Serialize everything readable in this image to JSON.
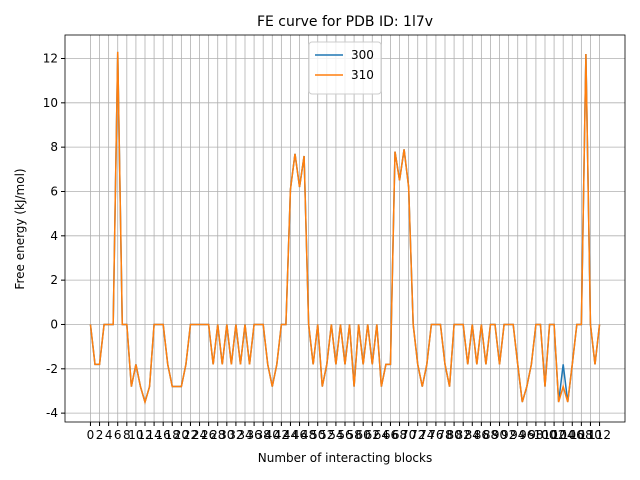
{
  "chart_data": {
    "type": "line",
    "title": "FE curve for PDB ID: 1l7v",
    "x_label": "Number of interacting blocks",
    "y_label": "Free energy (kJ/mol)",
    "x": [
      0,
      1,
      2,
      3,
      4,
      5,
      6,
      7,
      8,
      9,
      10,
      11,
      12,
      13,
      14,
      15,
      16,
      17,
      18,
      19,
      20,
      21,
      22,
      23,
      24,
      25,
      26,
      27,
      28,
      29,
      30,
      31,
      32,
      33,
      34,
      35,
      36,
      37,
      38,
      39,
      40,
      41,
      42,
      43,
      44,
      45,
      46,
      47,
      48,
      49,
      50,
      51,
      52,
      53,
      54,
      55,
      56,
      57,
      58,
      59,
      60,
      61,
      62,
      63,
      64,
      65,
      66,
      67,
      68,
      69,
      70,
      71,
      72,
      73,
      74,
      75,
      76,
      77,
      78,
      79,
      80,
      81,
      82,
      83,
      84,
      85,
      86,
      87,
      88,
      89,
      90,
      91,
      92,
      93,
      94,
      95,
      96,
      97,
      98,
      99,
      100,
      101,
      102,
      103,
      104,
      105,
      106,
      107,
      108,
      109,
      110,
      111,
      112
    ],
    "series": [
      {
        "name": "300",
        "color": "#1f77b4",
        "values": [
          0,
          -1.8,
          -1.8,
          0,
          0,
          0,
          12.3,
          0,
          0,
          -2.8,
          -1.8,
          -2.8,
          -3.5,
          -2.8,
          0,
          0,
          0,
          -1.8,
          -2.8,
          -2.8,
          -2.8,
          -1.8,
          0,
          0,
          0,
          0,
          0,
          -1.8,
          0,
          -1.8,
          0,
          -1.8,
          0,
          -1.8,
          0,
          -1.8,
          0,
          0,
          0,
          -1.8,
          -2.8,
          -1.8,
          0,
          0,
          6.1,
          7.7,
          6.2,
          7.6,
          0,
          -1.8,
          0,
          -2.8,
          -1.8,
          0,
          -1.8,
          0,
          -1.8,
          0,
          -2.8,
          0,
          -1.8,
          0,
          -1.8,
          0,
          -2.8,
          -1.8,
          -1.8,
          7.8,
          6.5,
          7.9,
          6.2,
          0,
          -1.8,
          -2.8,
          -1.8,
          0,
          0,
          0,
          -1.8,
          -2.8,
          0,
          0,
          0,
          -1.8,
          0,
          -1.8,
          0,
          -1.8,
          0,
          0,
          -1.8,
          0,
          0,
          0,
          -1.8,
          -3.5,
          -2.8,
          -1.8,
          0,
          0,
          -2.8,
          0,
          0,
          -3.5,
          -1.8,
          -3.5,
          -1.8,
          0,
          0,
          12.2,
          0,
          -1.8,
          0
        ]
      },
      {
        "name": "310",
        "color": "#ff7f0e",
        "values": [
          0,
          -1.8,
          -1.8,
          0,
          0,
          0,
          12.3,
          0,
          0,
          -2.8,
          -1.8,
          -2.8,
          -3.5,
          -2.8,
          0,
          0,
          0,
          -1.8,
          -2.8,
          -2.8,
          -2.8,
          -1.8,
          0,
          0,
          0,
          0,
          0,
          -1.8,
          0,
          -1.8,
          0,
          -1.8,
          0,
          -1.8,
          0,
          -1.8,
          0,
          0,
          0,
          -1.8,
          -2.8,
          -1.8,
          0,
          0,
          6.1,
          7.7,
          6.2,
          7.6,
          0,
          -1.8,
          0,
          -2.8,
          -1.8,
          0,
          -1.8,
          0,
          -1.8,
          0,
          -2.8,
          0,
          -1.8,
          0,
          -1.8,
          0,
          -2.8,
          -1.8,
          -1.8,
          7.8,
          6.5,
          7.9,
          6.2,
          0,
          -1.8,
          -2.8,
          -1.8,
          0,
          0,
          0,
          -1.8,
          -2.8,
          0,
          0,
          0,
          -1.8,
          0,
          -1.8,
          0,
          -1.8,
          0,
          0,
          -1.8,
          0,
          0,
          0,
          -1.8,
          -3.5,
          -2.8,
          -1.8,
          0,
          0,
          -2.8,
          0,
          0,
          -3.5,
          -2.8,
          -3.5,
          -1.8,
          0,
          0,
          12.2,
          0,
          -1.8,
          0
        ]
      }
    ],
    "xlim": [
      -5.6,
      117.6
    ],
    "xticks": [
      0,
      2,
      4,
      6,
      8,
      10,
      12,
      14,
      16,
      18,
      20,
      22,
      24,
      26,
      28,
      30,
      32,
      34,
      36,
      38,
      40,
      42,
      44,
      46,
      48,
      50,
      52,
      54,
      56,
      58,
      60,
      62,
      64,
      66,
      68,
      70,
      72,
      74,
      76,
      78,
      80,
      82,
      84,
      86,
      88,
      90,
      92,
      94,
      96,
      98,
      100,
      102,
      104,
      106,
      108,
      110,
      112
    ],
    "ylim": [
      -4.4,
      13.06
    ],
    "yticks": [
      -4,
      -2,
      0,
      2,
      4,
      6,
      8,
      10,
      12
    ],
    "grid": true,
    "legend": "upper center"
  }
}
